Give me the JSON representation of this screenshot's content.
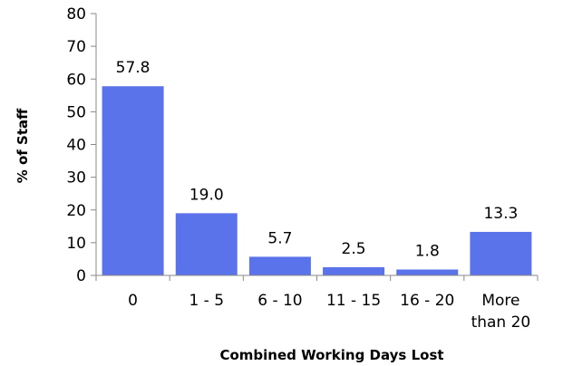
{
  "chart_data": {
    "type": "bar",
    "categories": [
      [
        "0"
      ],
      [
        "1 - 5"
      ],
      [
        "6 - 10"
      ],
      [
        "11 - 15"
      ],
      [
        "16 - 20"
      ],
      [
        "More",
        "than 20"
      ]
    ],
    "values": [
      57.8,
      19.0,
      5.7,
      2.5,
      1.8,
      13.3
    ],
    "value_labels": [
      "57.8",
      "19.0",
      "5.7",
      "2.5",
      "1.8",
      "13.3"
    ],
    "xlabel": "Combined Working Days Lost",
    "ylabel": "% of Staff",
    "ylim": [
      0,
      80
    ],
    "yticks": [
      0,
      10,
      20,
      30,
      40,
      50,
      60,
      70,
      80
    ],
    "bar_color": "#5b73ea",
    "grid": false,
    "legend": "none"
  }
}
